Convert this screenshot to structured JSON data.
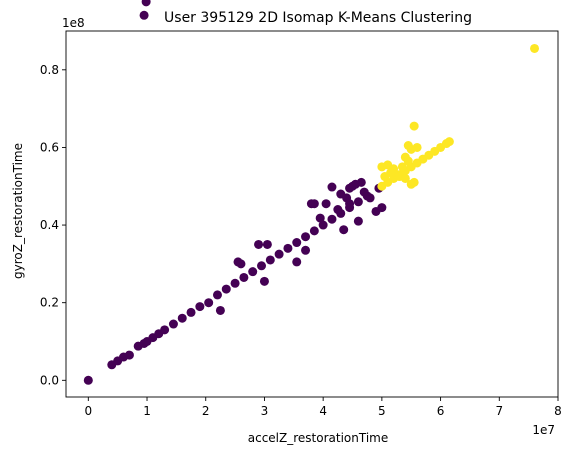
{
  "chart_data": {
    "type": "scatter",
    "title": "User 395129 2D Isomap K-Means Clustering",
    "xlabel": "accelZ_restorationTime",
    "ylabel": "gyroZ_restorationTime",
    "x_multiplier_label": "1e7",
    "y_multiplier_label": "1e8",
    "x_scale": 10000000,
    "y_scale": 100000000,
    "xlim": [
      -0.38,
      8.0
    ],
    "ylim": [
      -0.043,
      0.9
    ],
    "xticks": [
      0,
      1,
      2,
      3,
      4,
      5,
      6,
      7,
      8
    ],
    "xtick_labels": [
      "0",
      "1",
      "2",
      "3",
      "4",
      "5",
      "6",
      "7",
      "8"
    ],
    "yticks": [
      0.0,
      0.2,
      0.4,
      0.6,
      0.8
    ],
    "ytick_labels": [
      "0.0",
      "0.2",
      "0.4",
      "0.6",
      "0.8"
    ],
    "grid": false,
    "legend": "none",
    "colors": {
      "cluster_0": "#440154",
      "cluster_1": "#fde725"
    },
    "series": [
      {
        "cluster": 0,
        "color": "#440154",
        "trend": {
          "x_range": [
            0.95,
            4.95
          ],
          "slope": 0.99,
          "intercept": 0.0
        },
        "points": [
          [
            0.0,
            0.0
          ],
          [
            0.4,
            0.04
          ],
          [
            0.5,
            0.05
          ],
          [
            0.6,
            0.06
          ],
          [
            0.7,
            0.065
          ],
          [
            0.85,
            0.088
          ],
          [
            0.95,
            0.095
          ],
          [
            1.0,
            0.1
          ],
          [
            1.1,
            0.11
          ],
          [
            1.2,
            0.12
          ],
          [
            1.3,
            0.13
          ],
          [
            1.45,
            0.145
          ],
          [
            1.6,
            0.16
          ],
          [
            1.75,
            0.175
          ],
          [
            1.9,
            0.19
          ],
          [
            2.05,
            0.2
          ],
          [
            2.2,
            0.22
          ],
          [
            2.35,
            0.235
          ],
          [
            2.5,
            0.25
          ],
          [
            2.65,
            0.265
          ],
          [
            2.8,
            0.28
          ],
          [
            2.95,
            0.295
          ],
          [
            3.1,
            0.31
          ],
          [
            3.25,
            0.325
          ],
          [
            3.4,
            0.34
          ],
          [
            3.55,
            0.355
          ],
          [
            3.7,
            0.37
          ],
          [
            3.85,
            0.385
          ],
          [
            4.0,
            0.4
          ],
          [
            4.15,
            0.415
          ],
          [
            4.3,
            0.43
          ],
          [
            4.45,
            0.445
          ],
          [
            4.6,
            0.46
          ],
          [
            4.75,
            0.475
          ],
          [
            4.95,
            0.495
          ],
          [
            2.25,
            0.18
          ],
          [
            2.55,
            0.305
          ],
          [
            2.6,
            0.3
          ],
          [
            2.9,
            0.35
          ],
          [
            3.05,
            0.35
          ],
          [
            3.0,
            0.255
          ],
          [
            3.55,
            0.305
          ],
          [
            3.7,
            0.335
          ],
          [
            3.8,
            0.455
          ],
          [
            3.85,
            0.455
          ],
          [
            3.95,
            0.418
          ],
          [
            4.05,
            0.455
          ],
          [
            4.15,
            0.498
          ],
          [
            4.3,
            0.48
          ],
          [
            4.35,
            0.388
          ],
          [
            4.4,
            0.47
          ],
          [
            4.45,
            0.495
          ],
          [
            4.5,
            0.5
          ],
          [
            4.6,
            0.41
          ],
          [
            4.55,
            0.505
          ],
          [
            4.65,
            0.51
          ],
          [
            4.7,
            0.485
          ],
          [
            4.9,
            0.435
          ],
          [
            5.0,
            0.445
          ],
          [
            4.8,
            0.47
          ],
          [
            4.45,
            0.455
          ],
          [
            4.25,
            0.44
          ]
        ]
      },
      {
        "cluster": 1,
        "color": "#fde725",
        "trend": {
          "x_range": [
            4.95,
            6.2
          ],
          "slope": 0.99,
          "intercept": 0.0
        },
        "points": [
          [
            5.0,
            0.5
          ],
          [
            5.1,
            0.51
          ],
          [
            5.2,
            0.52
          ],
          [
            5.3,
            0.53
          ],
          [
            5.4,
            0.54
          ],
          [
            5.5,
            0.55
          ],
          [
            5.6,
            0.56
          ],
          [
            5.7,
            0.57
          ],
          [
            5.8,
            0.58
          ],
          [
            5.9,
            0.59
          ],
          [
            6.0,
            0.6
          ],
          [
            6.1,
            0.61
          ],
          [
            6.15,
            0.615
          ],
          [
            5.0,
            0.55
          ],
          [
            5.1,
            0.555
          ],
          [
            5.2,
            0.545
          ],
          [
            5.25,
            0.53
          ],
          [
            5.3,
            0.525
          ],
          [
            5.35,
            0.55
          ],
          [
            5.4,
            0.575
          ],
          [
            5.45,
            0.605
          ],
          [
            5.5,
            0.595
          ],
          [
            5.55,
            0.655
          ],
          [
            5.45,
            0.565
          ],
          [
            5.6,
            0.6
          ],
          [
            5.5,
            0.505
          ],
          [
            5.55,
            0.51
          ],
          [
            5.4,
            0.52
          ],
          [
            5.15,
            0.535
          ],
          [
            5.05,
            0.525
          ],
          [
            7.6,
            0.855
          ]
        ]
      }
    ]
  }
}
